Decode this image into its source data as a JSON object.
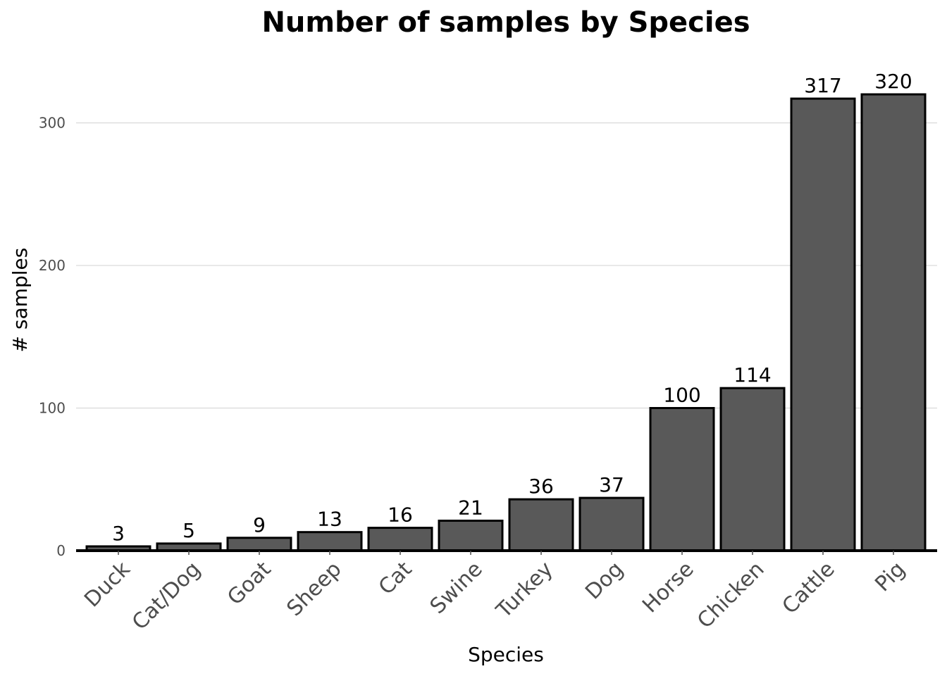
{
  "chart_data": {
    "type": "bar",
    "title": "Number of samples by Species",
    "xlabel": "Species",
    "ylabel": "# samples",
    "categories": [
      "Duck",
      "Cat/Dog",
      "Goat",
      "Sheep",
      "Cat",
      "Swine",
      "Turkey",
      "Dog",
      "Horse",
      "Chicken",
      "Cattle",
      "Pig"
    ],
    "values": [
      3,
      5,
      9,
      13,
      16,
      21,
      36,
      37,
      100,
      114,
      317,
      320
    ],
    "ylim": [
      0,
      340
    ],
    "yticks": [
      0,
      100,
      200,
      300
    ],
    "grid": true,
    "bar_color": "#595959",
    "bar_edge_color": "#000000",
    "grid_color": "#d9d9d9"
  }
}
